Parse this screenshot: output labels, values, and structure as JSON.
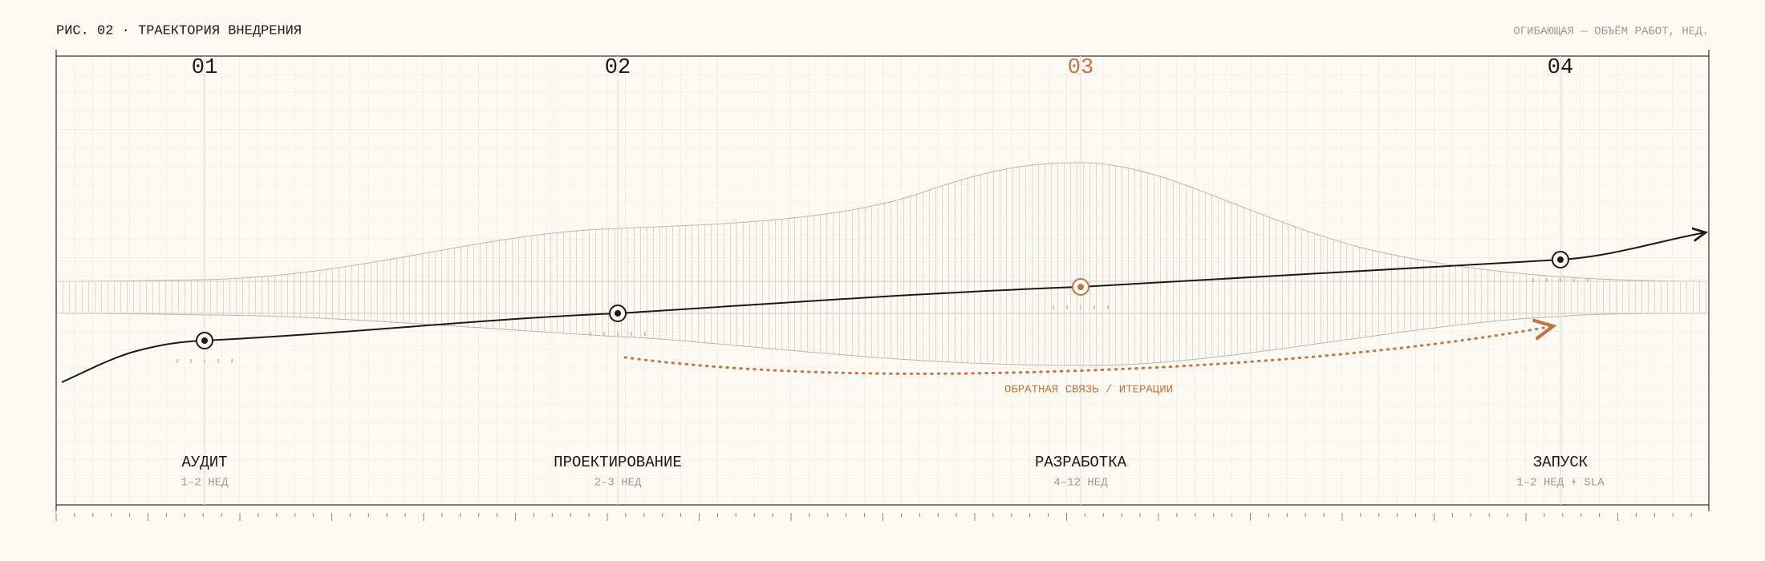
{
  "header": {
    "title": "РИС. 02 · ТРАЕКТОРИЯ ВНЕДРЕНИЯ",
    "note": "ОГИБАЮЩАЯ — ОБЪЁМ РАБОТ, НЕД."
  },
  "stages": [
    {
      "number": "01",
      "name": "АУДИТ",
      "duration": "1–2 НЕД"
    },
    {
      "number": "02",
      "name": "ПРОЕКТИРОВАНИЕ",
      "duration": "2–3 НЕД"
    },
    {
      "number": "03",
      "name": "РАЗРАБОТКА",
      "duration": "4–12 НЕД"
    },
    {
      "number": "04",
      "name": "ЗАПУСК",
      "duration": "1–2 НЕД + SLA"
    }
  ],
  "feedback_label": "ОБРАТНАЯ СВЯЗЬ / ИТЕРАЦИИ"
}
